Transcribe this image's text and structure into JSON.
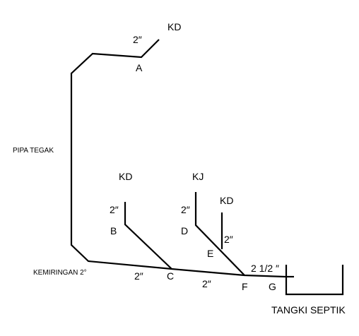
{
  "labels": {
    "kd_top": "KD",
    "size_top": "2″",
    "node_a": "A",
    "pipa_tegak": "PIPA TEGAK",
    "kd_b": "KD",
    "size_b": "2″",
    "node_b": "B",
    "kj": "KJ",
    "size_d": "2″",
    "node_d": "D",
    "kd_e": "KD",
    "size_e": "2″",
    "node_e": "E",
    "kemiringan": "KEMIRINGAN 2°",
    "size_c": "2″",
    "node_c": "C",
    "size_cf": "2″",
    "node_f": "F",
    "size_fg": "2 1/2 ″",
    "node_g": "G",
    "tangki": "TANGKI SEPTIK"
  }
}
